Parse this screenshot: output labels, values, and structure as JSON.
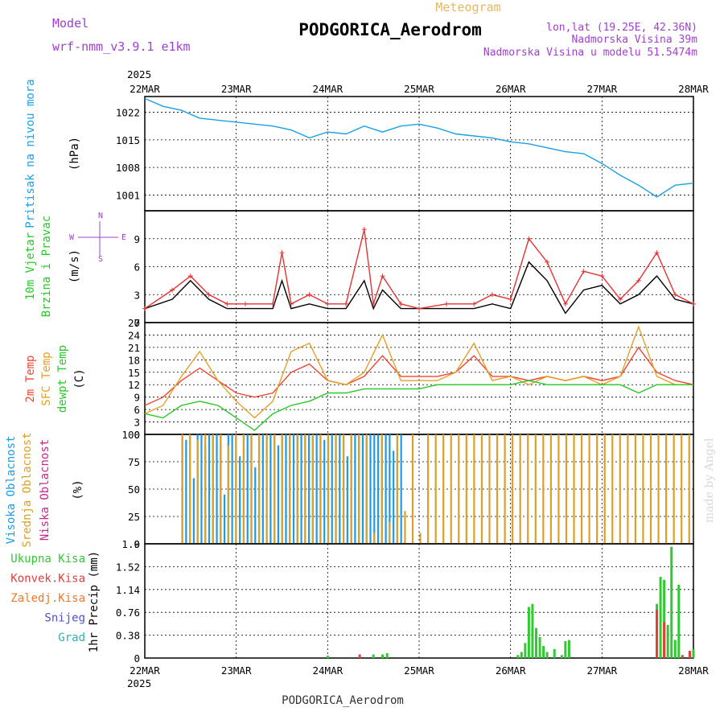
{
  "header": {
    "meteogram": "Meteogram",
    "model_label": "Model",
    "model_name": "wrf-nmm_v3.9.1 e1km",
    "station": "PODGORICA_Aerodrom",
    "lonlat": "lon,lat (19.25E, 42.36N)",
    "elevation": "Nadmorska Visina 39m",
    "model_elevation": "Nadmorska Visina u modelu 51.5474m",
    "footer_station": "PODGORICA_Aerodrom",
    "credit": "made by Angel"
  },
  "colors": {
    "pressure": "#1aa0e6",
    "wind_speed": "#000000",
    "gust": "#e63232",
    "temp2m": "#f04632",
    "sfc_temp": "#e6a028",
    "dewpoint": "#28c828",
    "high_cloud": "#1e9be6",
    "mid_cloud": "#dca028",
    "low_cloud": "#c8288c",
    "total_precip": "#32c832",
    "conv_precip": "#e63c3c",
    "frozen": "#f07828",
    "snow": "#5050d2",
    "hail": "#28b4b4",
    "label_purple": "#a040d0",
    "title_gold": "#e8b860"
  },
  "chart_data": [
    {
      "type": "line",
      "panel": "pressure",
      "ylabel": [
        "Pritisak na nivou mora",
        "(hPa)"
      ],
      "ylim": [
        997,
        1026
      ],
      "yticks": [
        1001,
        1008,
        1015,
        1022
      ],
      "x_ticks": [
        "22MAR",
        "23MAR",
        "24MAR",
        "25MAR",
        "26MAR",
        "27MAR",
        "28MAR"
      ],
      "year": "2025",
      "grid": true,
      "series": [
        {
          "key": "pressure",
          "x": [
            0,
            0.2,
            0.4,
            0.6,
            0.8,
            1.0,
            1.2,
            1.4,
            1.6,
            1.8,
            2.0,
            2.2,
            2.4,
            2.6,
            2.8,
            3.0,
            3.2,
            3.4,
            3.6,
            3.8,
            4.0,
            4.2,
            4.4,
            4.6,
            4.8,
            5.0,
            5.2,
            5.4,
            5.6,
            5.8,
            6.0
          ],
          "values": [
            1025.5,
            1023.5,
            1022.5,
            1020.5,
            1020.0,
            1019.5,
            1019.0,
            1018.5,
            1017.5,
            1015.5,
            1017.0,
            1016.5,
            1018.5,
            1017.0,
            1018.5,
            1019.0,
            1018.0,
            1016.5,
            1016.0,
            1015.5,
            1014.5,
            1014.0,
            1013.0,
            1012.0,
            1011.5,
            1009.0,
            1006.0,
            1003.5,
            1000.5,
            1003.5,
            1004.0
          ]
        }
      ]
    },
    {
      "type": "line",
      "panel": "wind",
      "ylabel": [
        "10m Vjetar",
        "Brzina i Pravac",
        "(m/s)"
      ],
      "compass": [
        "N",
        "W",
        "E",
        "S"
      ],
      "ylim": [
        0,
        12
      ],
      "yticks": [
        0,
        3,
        6,
        9
      ],
      "grid": true,
      "series": [
        {
          "name": "speed",
          "key": "wind_speed",
          "x": [
            0,
            0.3,
            0.5,
            0.7,
            0.9,
            1.1,
            1.4,
            1.5,
            1.6,
            1.8,
            2.0,
            2.2,
            2.4,
            2.5,
            2.6,
            2.8,
            3.0,
            3.3,
            3.6,
            3.8,
            4.0,
            4.2,
            4.4,
            4.6,
            4.8,
            5.0,
            5.2,
            5.4,
            5.6,
            5.8,
            6.0
          ],
          "values": [
            1.5,
            2.5,
            4.5,
            2.5,
            1.5,
            1.5,
            1.5,
            4.5,
            1.5,
            2.0,
            1.5,
            1.5,
            4.5,
            1.5,
            3.5,
            1.5,
            1.5,
            1.5,
            1.5,
            2.0,
            1.5,
            6.5,
            4.5,
            1.0,
            3.5,
            4.0,
            2.0,
            3.0,
            5.0,
            2.5,
            2.0
          ]
        },
        {
          "name": "gust",
          "key": "gust",
          "x": [
            0,
            0.3,
            0.5,
            0.7,
            0.9,
            1.1,
            1.4,
            1.5,
            1.6,
            1.8,
            2.0,
            2.2,
            2.4,
            2.5,
            2.6,
            2.8,
            3.0,
            3.3,
            3.6,
            3.8,
            4.0,
            4.2,
            4.4,
            4.6,
            4.8,
            5.0,
            5.2,
            5.4,
            5.6,
            5.8,
            6.0
          ],
          "values": [
            1.5,
            3.5,
            5.0,
            3.0,
            2.0,
            2.0,
            2.0,
            7.5,
            2.0,
            3.0,
            2.0,
            2.0,
            10.0,
            2.0,
            5.0,
            2.0,
            1.5,
            2.0,
            2.0,
            3.0,
            2.5,
            9.0,
            6.5,
            2.0,
            5.5,
            5.0,
            2.5,
            4.5,
            7.5,
            3.0,
            2.0
          ]
        }
      ]
    },
    {
      "type": "line",
      "panel": "temperature",
      "ylabel": [
        "2m Temp",
        "SFC Temp",
        "dewpt Temp",
        "(C)"
      ],
      "ylim": [
        0,
        27
      ],
      "yticks": [
        0,
        3,
        6,
        9,
        12,
        15,
        18,
        21,
        24,
        27
      ],
      "grid": true,
      "series": [
        {
          "name": "2m Temp",
          "key": "temp2m",
          "x": [
            0,
            0.2,
            0.4,
            0.6,
            0.8,
            1.0,
            1.2,
            1.4,
            1.6,
            1.8,
            2.0,
            2.2,
            2.4,
            2.6,
            2.8,
            3.0,
            3.2,
            3.4,
            3.6,
            3.8,
            4.0,
            4.2,
            4.4,
            4.6,
            4.8,
            5.0,
            5.2,
            5.4,
            5.6,
            5.8,
            6.0
          ],
          "values": [
            7,
            9,
            13,
            16,
            13,
            10,
            9,
            10,
            15,
            17,
            13,
            12,
            14,
            19,
            14,
            14,
            14,
            15,
            19,
            14,
            14,
            13,
            14,
            13,
            14,
            13,
            14,
            21,
            15,
            13,
            12
          ]
        },
        {
          "name": "SFC Temp",
          "key": "sfc_temp",
          "x": [
            0,
            0.2,
            0.4,
            0.6,
            0.8,
            1.0,
            1.2,
            1.4,
            1.6,
            1.8,
            2.0,
            2.2,
            2.4,
            2.6,
            2.8,
            3.0,
            3.2,
            3.4,
            3.6,
            3.8,
            4.0,
            4.2,
            4.4,
            4.6,
            4.8,
            5.0,
            5.2,
            5.4,
            5.6,
            5.8,
            6.0
          ],
          "values": [
            5,
            7,
            14,
            20,
            13,
            8,
            4,
            8,
            20,
            22,
            13,
            12,
            15,
            24,
            13,
            13,
            13,
            15,
            22,
            13,
            14,
            12,
            14,
            13,
            14,
            12,
            14,
            26,
            14,
            12,
            12
          ]
        },
        {
          "name": "dewpt Temp",
          "key": "dewpoint",
          "x": [
            0,
            0.2,
            0.4,
            0.6,
            0.8,
            1.0,
            1.2,
            1.4,
            1.6,
            1.8,
            2.0,
            2.2,
            2.4,
            2.6,
            2.8,
            3.0,
            3.2,
            3.4,
            3.6,
            3.8,
            4.0,
            4.2,
            4.4,
            4.6,
            4.8,
            5.0,
            5.2,
            5.4,
            5.6,
            5.8,
            6.0
          ],
          "values": [
            5,
            4,
            7,
            8,
            7,
            4,
            1,
            5,
            7,
            8,
            10,
            10,
            11,
            11,
            11,
            11,
            12,
            12,
            12,
            12,
            12,
            13,
            12,
            12,
            12,
            12,
            12,
            10,
            12,
            12,
            12
          ]
        }
      ]
    },
    {
      "type": "bar",
      "panel": "clouds",
      "ylabel": [
        "Visoka Oblacnost",
        "Srednja Oblacnost",
        "Niska Oblacnost",
        "(%)"
      ],
      "ylim": [
        0,
        100
      ],
      "yticks": [
        0,
        25,
        50,
        75,
        100
      ],
      "grid": true,
      "series": [
        {
          "name": "Visoka Oblacnost",
          "key": "high_cloud",
          "x_start": 0.4,
          "x_end": 2.8,
          "step": 0.042,
          "values": [
            100,
            95,
            100,
            60,
            100,
            100,
            90,
            100,
            100,
            100,
            100,
            45,
            100,
            100,
            100,
            80,
            100,
            100,
            100,
            70,
            100,
            100,
            100,
            100,
            100,
            90,
            100,
            100,
            100,
            100,
            100,
            100,
            100,
            100,
            100,
            100,
            100,
            95,
            100,
            100,
            100,
            100,
            100,
            80,
            100,
            100,
            100,
            100,
            100,
            100,
            100,
            100,
            100,
            100,
            100,
            85,
            100,
            100
          ]
        },
        {
          "name": "Srednja Oblacnost",
          "key": "mid_cloud",
          "x_start": 0.4,
          "x_end": 6.0,
          "step": 0.084,
          "values": [
            100,
            100,
            95,
            100,
            100,
            100,
            90,
            100,
            100,
            100,
            100,
            100,
            100,
            100,
            100,
            100,
            100,
            100,
            100,
            100,
            100,
            100,
            100,
            100,
            100,
            10,
            100,
            20,
            100,
            30,
            100,
            10,
            100,
            100,
            100,
            100,
            100,
            100,
            100,
            100,
            100,
            100,
            100,
            100,
            100,
            100,
            100,
            100,
            100,
            100,
            100,
            100,
            100,
            100,
            100,
            100,
            100,
            100,
            100,
            100,
            100,
            100,
            100,
            100,
            100,
            100,
            100
          ]
        },
        {
          "name": "Niska Oblacnost",
          "key": "low_cloud",
          "x_start": 0.1,
          "x_end": 6.0,
          "step": 0.1,
          "values": [
            0,
            0,
            0,
            0,
            0,
            0,
            0,
            0,
            0,
            0,
            0,
            0,
            0,
            0,
            0,
            0,
            0,
            0,
            0,
            0,
            0,
            0,
            0,
            0,
            0,
            0,
            0,
            0,
            0,
            0,
            0,
            0,
            0,
            0,
            0,
            0,
            0,
            0,
            0,
            0,
            0,
            0,
            0,
            0,
            0,
            0,
            0,
            0,
            0,
            0,
            0,
            0,
            0,
            0,
            0,
            0,
            0,
            0,
            0,
            0
          ]
        }
      ]
    },
    {
      "type": "bar",
      "panel": "precip",
      "ylabel": [
        "1hr Precip (mm)"
      ],
      "legend": [
        "Ukupna Kisa",
        "Konvek.Kisa",
        "Zaledj.Kisa",
        "Snijeg",
        "Grad"
      ],
      "ylim": [
        0,
        1.9
      ],
      "yticks": [
        0,
        0.38,
        0.76,
        1.14,
        1.52,
        1.9
      ],
      "grid": true,
      "series": [
        {
          "name": "Ukupna Kisa",
          "key": "total_precip",
          "x": [
            2.0,
            2.5,
            2.6,
            2.65,
            4.08,
            4.12,
            4.16,
            4.2,
            4.24,
            4.28,
            4.32,
            4.36,
            4.4,
            4.48,
            4.56,
            4.6,
            4.64,
            5.6,
            5.64,
            5.68,
            5.72,
            5.76,
            5.8,
            5.84,
            5.96,
            6.0
          ],
          "values": [
            0.04,
            0.06,
            0.06,
            0.08,
            0.05,
            0.1,
            0.25,
            0.85,
            0.9,
            0.5,
            0.35,
            0.2,
            0.1,
            0.15,
            0.05,
            0.28,
            0.3,
            0.9,
            1.35,
            1.3,
            0.55,
            1.85,
            0.3,
            1.22,
            0.1,
            0.15
          ]
        },
        {
          "name": "Konvek.Kisa",
          "key": "conv_precip",
          "x": [
            2.35,
            5.6,
            5.68,
            5.88,
            5.96
          ],
          "values": [
            0.06,
            0.8,
            0.6,
            0.05,
            0.12
          ]
        }
      ]
    }
  ]
}
